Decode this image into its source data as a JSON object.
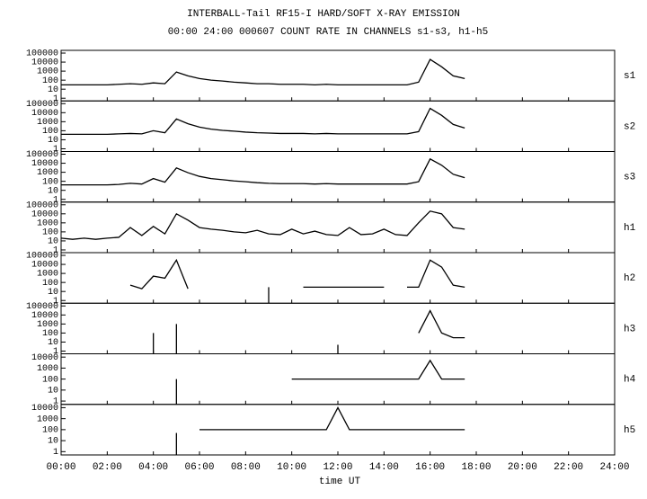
{
  "chart_data": {
    "type": "line",
    "title": "INTERBALL-Tail RF15-I HARD/SOFT X-RAY EMISSION",
    "subtitle": "00:00 24:00 000607  COUNT RATE IN CHANNELS s1-s3, h1-h5",
    "x_label": "time UT",
    "log_scale": true,
    "color": "#000000",
    "xlim": [
      0,
      24
    ],
    "xticks": [
      {
        "value": 0,
        "label": "00:00"
      },
      {
        "value": 2,
        "label": "02:00"
      },
      {
        "value": 4,
        "label": "04:00"
      },
      {
        "value": 6,
        "label": "06:00"
      },
      {
        "value": 8,
        "label": "08:00"
      },
      {
        "value": 10,
        "label": "10:00"
      },
      {
        "value": 12,
        "label": "12:00"
      },
      {
        "value": 14,
        "label": "14:00"
      },
      {
        "value": 16,
        "label": "16:00"
      },
      {
        "value": 18,
        "label": "18:00"
      },
      {
        "value": 20,
        "label": "20:00"
      },
      {
        "value": 22,
        "label": "22:00"
      },
      {
        "value": 24,
        "label": "24:00"
      }
    ],
    "x": [
      0,
      0.5,
      1,
      1.5,
      2,
      2.5,
      3,
      3.5,
      4,
      4.5,
      5,
      5.5,
      6,
      6.5,
      7,
      7.5,
      8,
      8.5,
      9,
      9.5,
      10,
      10.5,
      11,
      11.5,
      12,
      12.5,
      13,
      13.5,
      14,
      14.5,
      15,
      15.5,
      16,
      16.5,
      17,
      17.5
    ],
    "series": [
      {
        "name": "s1",
        "color": "#000000",
        "ylim": [
          0.5,
          200000
        ],
        "yticks": [
          1,
          10,
          100,
          1000,
          10000,
          100000
        ],
        "values": [
          30,
          30,
          30,
          30,
          30,
          35,
          40,
          35,
          50,
          40,
          800,
          300,
          150,
          100,
          80,
          60,
          50,
          40,
          40,
          35,
          35,
          35,
          30,
          35,
          30,
          30,
          30,
          30,
          30,
          30,
          30,
          60,
          20000,
          3000,
          300,
          150
        ]
      },
      {
        "name": "s2",
        "color": "#000000",
        "ylim": [
          0.5,
          200000
        ],
        "yticks": [
          1,
          10,
          100,
          1000,
          10000,
          100000
        ],
        "values": [
          40,
          40,
          40,
          40,
          40,
          45,
          50,
          45,
          100,
          60,
          2000,
          600,
          250,
          150,
          110,
          90,
          70,
          60,
          55,
          50,
          50,
          50,
          45,
          50,
          45,
          45,
          45,
          45,
          45,
          45,
          45,
          80,
          30000,
          5000,
          500,
          200
        ]
      },
      {
        "name": "s3",
        "color": "#000000",
        "ylim": [
          0.5,
          200000
        ],
        "yticks": [
          1,
          10,
          100,
          1000,
          10000,
          100000
        ],
        "values": [
          40,
          40,
          40,
          40,
          40,
          45,
          60,
          50,
          200,
          80,
          3000,
          900,
          350,
          200,
          150,
          110,
          90,
          70,
          60,
          55,
          55,
          55,
          50,
          55,
          50,
          50,
          50,
          50,
          50,
          50,
          50,
          90,
          30000,
          6000,
          600,
          250
        ]
      },
      {
        "name": "h1",
        "color": "#000000",
        "ylim": [
          0.5,
          200000
        ],
        "yticks": [
          1,
          10,
          100,
          1000,
          10000,
          100000
        ],
        "values": [
          20,
          15,
          20,
          15,
          20,
          25,
          300,
          40,
          400,
          60,
          10000,
          2000,
          300,
          200,
          150,
          100,
          80,
          150,
          60,
          50,
          200,
          60,
          120,
          50,
          40,
          300,
          50,
          60,
          200,
          50,
          40,
          1000,
          20000,
          10000,
          300,
          200
        ]
      },
      {
        "name": "h2",
        "color": "#000000",
        "ylim": [
          0.5,
          200000
        ],
        "yticks": [
          1,
          10,
          100,
          1000,
          10000,
          100000
        ],
        "values": [
          null,
          null,
          null,
          null,
          null,
          null,
          50,
          20,
          500,
          300,
          30000,
          20,
          null,
          null,
          null,
          null,
          null,
          null,
          30,
          null,
          null,
          30,
          30,
          30,
          30,
          30,
          30,
          30,
          30,
          null,
          30,
          30,
          30000,
          5000,
          50,
          30
        ]
      },
      {
        "name": "h3",
        "color": "#000000",
        "ylim": [
          0.5,
          200000
        ],
        "yticks": [
          1,
          10,
          100,
          1000,
          10000,
          100000
        ],
        "values": [
          null,
          null,
          null,
          null,
          null,
          null,
          null,
          null,
          100,
          null,
          1000,
          null,
          null,
          null,
          null,
          null,
          null,
          null,
          null,
          null,
          null,
          null,
          null,
          null,
          5,
          null,
          null,
          null,
          null,
          null,
          null,
          100,
          30000,
          100,
          30,
          30
        ]
      },
      {
        "name": "h4",
        "color": "#000000",
        "ylim": [
          0.5,
          20000
        ],
        "yticks": [
          1,
          10,
          100,
          1000,
          10000
        ],
        "values": [
          null,
          null,
          null,
          null,
          null,
          null,
          null,
          null,
          null,
          null,
          100,
          null,
          null,
          null,
          null,
          null,
          null,
          null,
          null,
          null,
          100,
          100,
          100,
          100,
          100,
          100,
          100,
          100,
          100,
          100,
          100,
          100,
          5000,
          100,
          100,
          100
        ]
      },
      {
        "name": "h5",
        "color": "#000000",
        "ylim": [
          0.5,
          20000
        ],
        "yticks": [
          1,
          10,
          100,
          1000,
          10000
        ],
        "values": [
          null,
          null,
          null,
          null,
          null,
          null,
          null,
          null,
          null,
          null,
          50,
          null,
          100,
          100,
          100,
          100,
          100,
          100,
          100,
          100,
          100,
          100,
          100,
          100,
          10000,
          100,
          100,
          100,
          100,
          100,
          100,
          100,
          100,
          100,
          100,
          100
        ]
      }
    ]
  }
}
